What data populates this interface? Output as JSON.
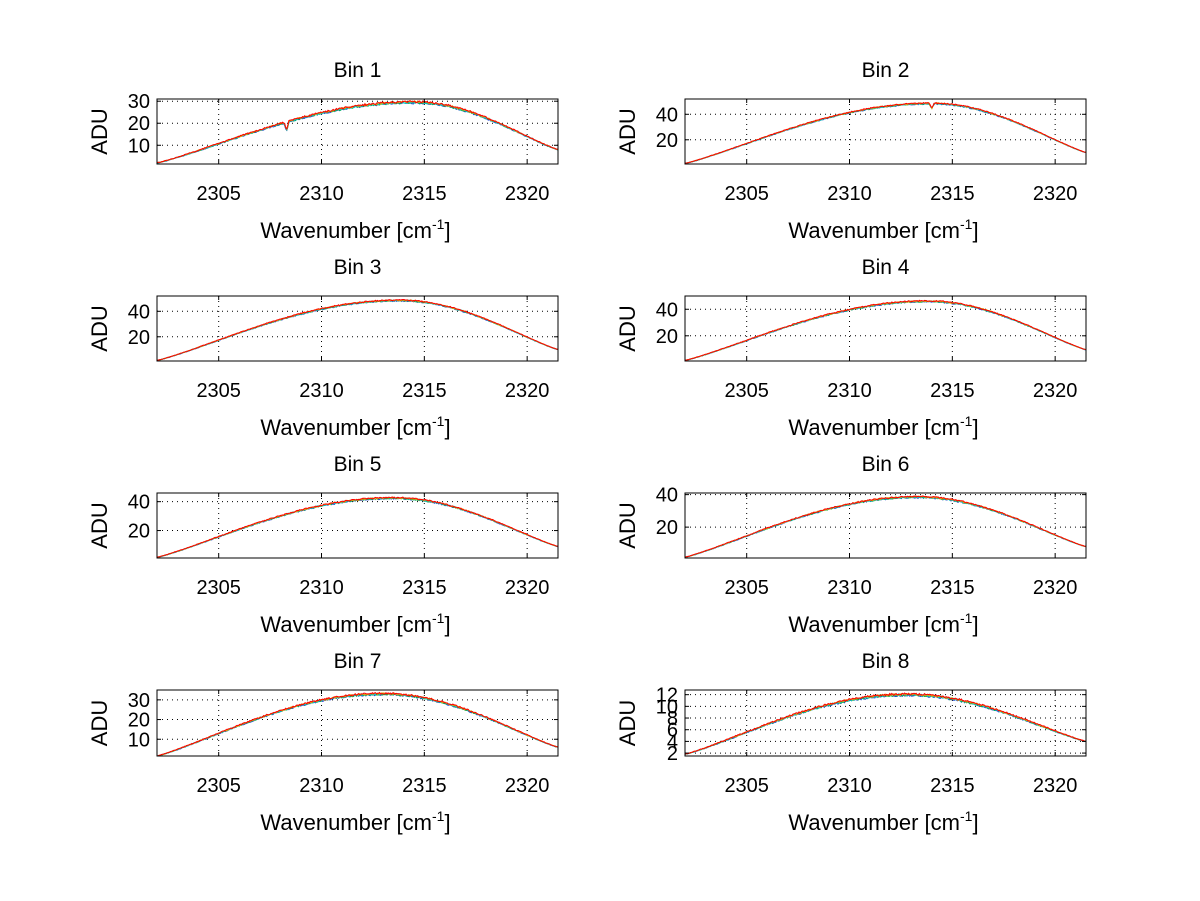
{
  "figure": {
    "background": "#ffffff",
    "series_colors": [
      "#1f3fd8",
      "#00b050",
      "#00c8c8",
      "#e0a000",
      "#ff0000"
    ]
  },
  "chart_data": [
    {
      "type": "line",
      "title": "Bin 1",
      "xlabel_prefix": "Wavenumber [cm",
      "xlabel_sup": "-1",
      "xlabel_suffix": "]",
      "ylabel": "ADU",
      "xlim": [
        2302,
        2321.5
      ],
      "ylim": [
        1.5,
        31
      ],
      "xticks": [
        2305,
        2310,
        2315,
        2320
      ],
      "yticks": [
        10,
        20,
        30
      ],
      "peak_x": 2314.5,
      "peak_y": 29.5,
      "end_left": 2.0,
      "end_right": 8.0,
      "noise": 0.45,
      "dip_x": 2308.3,
      "dip_depth": 4.0
    },
    {
      "type": "line",
      "title": "Bin 2",
      "xlabel_prefix": "Wavenumber [cm",
      "xlabel_sup": "-1",
      "xlabel_suffix": "]",
      "ylabel": "ADU",
      "xlim": [
        2302,
        2321.5
      ],
      "ylim": [
        1,
        52
      ],
      "xticks": [
        2305,
        2310,
        2315,
        2320
      ],
      "yticks": [
        20,
        40
      ],
      "peak_x": 2314.0,
      "peak_y": 48.5,
      "end_left": 1.5,
      "end_right": 10.0,
      "noise": 0.5,
      "dip_x": 2314.0,
      "dip_depth": 4.0
    },
    {
      "type": "line",
      "title": "Bin 3",
      "xlabel_prefix": "Wavenumber [cm",
      "xlabel_sup": "-1",
      "xlabel_suffix": "]",
      "ylabel": "ADU",
      "xlim": [
        2302,
        2321.5
      ],
      "ylim": [
        1,
        52
      ],
      "xticks": [
        2305,
        2310,
        2315,
        2320
      ],
      "yticks": [
        20,
        40
      ],
      "peak_x": 2313.8,
      "peak_y": 48.5,
      "end_left": 1.5,
      "end_right": 10.0,
      "noise": 0.5,
      "dip_x": 0,
      "dip_depth": 0
    },
    {
      "type": "line",
      "title": "Bin 4",
      "xlabel_prefix": "Wavenumber [cm",
      "xlabel_sup": "-1",
      "xlabel_suffix": "]",
      "ylabel": "ADU",
      "xlim": [
        2302,
        2321.5
      ],
      "ylim": [
        1,
        50
      ],
      "xticks": [
        2305,
        2310,
        2315,
        2320
      ],
      "yticks": [
        20,
        40
      ],
      "peak_x": 2313.8,
      "peak_y": 46.0,
      "end_left": 1.5,
      "end_right": 9.5,
      "noise": 0.5,
      "dip_x": 0,
      "dip_depth": 0
    },
    {
      "type": "line",
      "title": "Bin 5",
      "xlabel_prefix": "Wavenumber [cm",
      "xlabel_sup": "-1",
      "xlabel_suffix": "]",
      "ylabel": "ADU",
      "xlim": [
        2302,
        2321.5
      ],
      "ylim": [
        1,
        46
      ],
      "xticks": [
        2305,
        2310,
        2315,
        2320
      ],
      "yticks": [
        20,
        40
      ],
      "peak_x": 2313.5,
      "peak_y": 42.5,
      "end_left": 1.5,
      "end_right": 9.0,
      "noise": 0.5,
      "dip_x": 0,
      "dip_depth": 0
    },
    {
      "type": "line",
      "title": "Bin 6",
      "xlabel_prefix": "Wavenumber [cm",
      "xlabel_sup": "-1",
      "xlabel_suffix": "]",
      "ylabel": "ADU",
      "xlim": [
        2302,
        2321.5
      ],
      "ylim": [
        1,
        41
      ],
      "xticks": [
        2305,
        2310,
        2315,
        2320
      ],
      "yticks": [
        20,
        40
      ],
      "peak_x": 2313.3,
      "peak_y": 38.5,
      "end_left": 1.5,
      "end_right": 8.0,
      "noise": 0.45,
      "dip_x": 0,
      "dip_depth": 0
    },
    {
      "type": "line",
      "title": "Bin 7",
      "xlabel_prefix": "Wavenumber [cm",
      "xlabel_sup": "-1",
      "xlabel_suffix": "]",
      "ylabel": "ADU",
      "xlim": [
        2302,
        2321.5
      ],
      "ylim": [
        1.5,
        35
      ],
      "xticks": [
        2305,
        2310,
        2315,
        2320
      ],
      "yticks": [
        10,
        20,
        30
      ],
      "peak_x": 2313.0,
      "peak_y": 33.0,
      "end_left": 1.5,
      "end_right": 6.0,
      "noise": 0.45,
      "dip_x": 0,
      "dip_depth": 0
    },
    {
      "type": "line",
      "title": "Bin 8",
      "xlabel_prefix": "Wavenumber [cm",
      "xlabel_sup": "-1",
      "xlabel_suffix": "]",
      "ylabel": "ADU",
      "xlim": [
        2302,
        2321.5
      ],
      "ylim": [
        1.5,
        12.8
      ],
      "xticks": [
        2305,
        2310,
        2315,
        2320
      ],
      "yticks": [
        2,
        4,
        6,
        8,
        10,
        12
      ],
      "peak_x": 2312.8,
      "peak_y": 12.0,
      "end_left": 1.8,
      "end_right": 4.0,
      "noise": 0.18,
      "dip_x": 0,
      "dip_depth": 0
    }
  ]
}
